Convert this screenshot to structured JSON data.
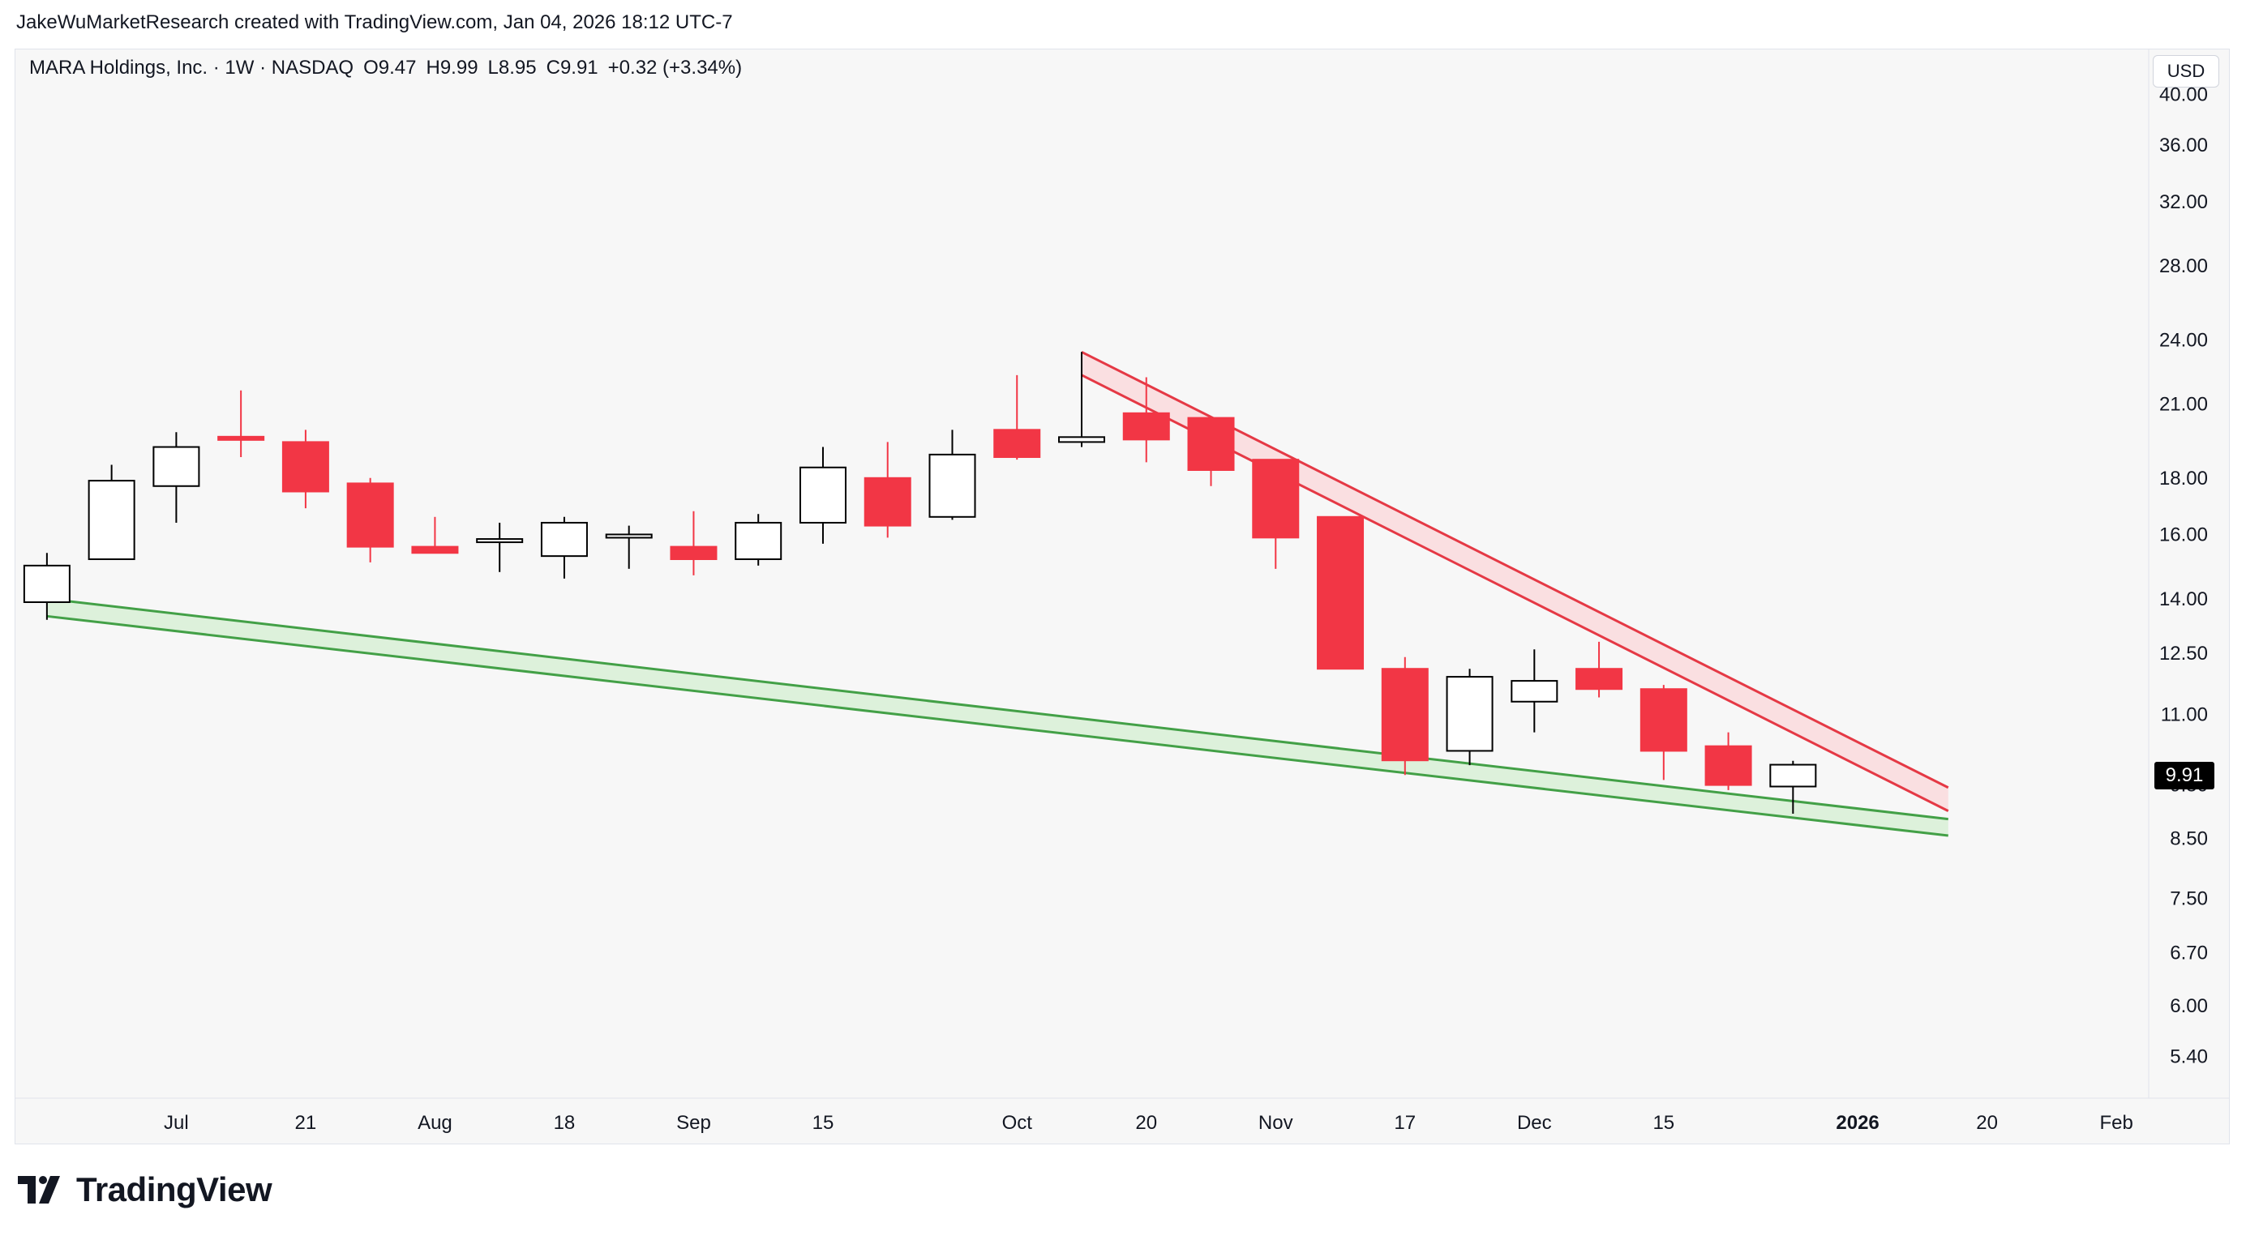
{
  "header": {
    "caption": "JakeWuMarketResearch created with TradingView.com, Jan 04, 2026 18:12 UTC-7"
  },
  "legend": {
    "symbol": "MARA Holdings, Inc. · 1W · NASDAQ",
    "open": "O9.47",
    "high": "H9.99",
    "low": "L8.95",
    "close": "C9.91",
    "change": "+0.32 (+3.34%)"
  },
  "currency": "USD",
  "last_price_label": "9.91",
  "brand": {
    "name": "TradingView"
  },
  "colors": {
    "up_body": "#ffffff",
    "up_border": "#000000",
    "down": "#f23645",
    "support": "#43a047",
    "support_fill": "#d8f0d6",
    "resistance": "#e53945",
    "resistance_fill": "#fadadd",
    "background": "#f7f7f7"
  },
  "chart_data": {
    "type": "candlestick",
    "title": "MARA Holdings, Inc. · 1W · NASDAQ",
    "y_scale": "log",
    "ylim": [
      4.95,
      44.0
    ],
    "y_ticks": [
      40.0,
      36.0,
      32.0,
      28.0,
      24.0,
      21.0,
      18.0,
      16.0,
      14.0,
      12.5,
      11.0,
      9.5,
      8.5,
      7.5,
      6.7,
      6.0,
      5.4
    ],
    "y_tick_labels": [
      "40.00",
      "36.00",
      "32.00",
      "28.00",
      "24.00",
      "21.00",
      "18.00",
      "16.00",
      "14.00",
      "12.50",
      "11.00",
      "9.50",
      "8.50",
      "7.50",
      "6.70",
      "6.00",
      "5.40"
    ],
    "x_index_range": [
      -0.5,
      32.5
    ],
    "x_ticks": [
      {
        "i": 2,
        "label": "Jul",
        "bold": false
      },
      {
        "i": 4,
        "label": "21",
        "bold": false
      },
      {
        "i": 6,
        "label": "Aug",
        "bold": false
      },
      {
        "i": 8,
        "label": "18",
        "bold": false
      },
      {
        "i": 10,
        "label": "Sep",
        "bold": false
      },
      {
        "i": 12,
        "label": "15",
        "bold": false
      },
      {
        "i": 15,
        "label": "Oct",
        "bold": false
      },
      {
        "i": 17,
        "label": "20",
        "bold": false
      },
      {
        "i": 19,
        "label": "Nov",
        "bold": false
      },
      {
        "i": 21,
        "label": "17",
        "bold": false
      },
      {
        "i": 23,
        "label": "Dec",
        "bold": false
      },
      {
        "i": 25,
        "label": "15",
        "bold": false
      },
      {
        "i": 28,
        "label": "2026",
        "bold": true
      },
      {
        "i": 30,
        "label": "20",
        "bold": false
      },
      {
        "i": 32,
        "label": "Feb",
        "bold": false
      }
    ],
    "candles": [
      {
        "o": 13.9,
        "h": 15.4,
        "l": 13.4,
        "c": 15.0
      },
      {
        "o": 15.2,
        "h": 18.5,
        "l": 15.2,
        "c": 17.9
      },
      {
        "o": 17.7,
        "h": 19.8,
        "l": 16.4,
        "c": 19.2
      },
      {
        "o": 19.6,
        "h": 21.6,
        "l": 18.8,
        "c": 19.5
      },
      {
        "o": 19.4,
        "h": 19.9,
        "l": 16.9,
        "c": 17.5
      },
      {
        "o": 17.8,
        "h": 18.0,
        "l": 15.1,
        "c": 15.6
      },
      {
        "o": 15.6,
        "h": 16.6,
        "l": 15.4,
        "c": 15.4
      },
      {
        "o": 15.8,
        "h": 16.4,
        "l": 14.8,
        "c": 15.8
      },
      {
        "o": 15.3,
        "h": 16.6,
        "l": 14.6,
        "c": 16.4
      },
      {
        "o": 15.9,
        "h": 16.3,
        "l": 14.9,
        "c": 16.0
      },
      {
        "o": 15.6,
        "h": 16.8,
        "l": 14.7,
        "c": 15.2
      },
      {
        "o": 15.2,
        "h": 16.7,
        "l": 15.0,
        "c": 16.4
      },
      {
        "o": 16.4,
        "h": 19.2,
        "l": 15.7,
        "c": 18.4
      },
      {
        "o": 18.0,
        "h": 19.4,
        "l": 15.9,
        "c": 16.3
      },
      {
        "o": 16.6,
        "h": 19.9,
        "l": 16.5,
        "c": 18.9
      },
      {
        "o": 19.9,
        "h": 22.3,
        "l": 18.7,
        "c": 18.8
      },
      {
        "o": 19.4,
        "h": 23.4,
        "l": 19.2,
        "c": 19.6
      },
      {
        "o": 20.6,
        "h": 22.2,
        "l": 18.6,
        "c": 19.5
      },
      {
        "o": 20.4,
        "h": 20.4,
        "l": 17.7,
        "c": 18.3
      },
      {
        "o": 18.7,
        "h": 18.7,
        "l": 14.9,
        "c": 15.9
      },
      {
        "o": 16.6,
        "h": 16.6,
        "l": 12.1,
        "c": 12.1
      },
      {
        "o": 12.1,
        "h": 12.4,
        "l": 9.7,
        "c": 10.0
      },
      {
        "o": 10.2,
        "h": 12.1,
        "l": 9.9,
        "c": 11.9
      },
      {
        "o": 11.3,
        "h": 12.6,
        "l": 10.6,
        "c": 11.8
      },
      {
        "o": 12.1,
        "h": 12.8,
        "l": 11.4,
        "c": 11.6
      },
      {
        "o": 11.6,
        "h": 11.7,
        "l": 9.6,
        "c": 10.2
      },
      {
        "o": 10.3,
        "h": 10.6,
        "l": 9.4,
        "c": 9.5
      },
      {
        "o": 9.47,
        "h": 9.99,
        "l": 8.95,
        "c": 9.91
      }
    ],
    "trendlines": [
      {
        "name": "resistance-channel",
        "upper": [
          [
            16,
            23.4
          ],
          [
            29.4,
            9.45
          ]
        ],
        "lower": [
          [
            16,
            22.3
          ],
          [
            29.4,
            9.0
          ]
        ]
      },
      {
        "name": "support-channel",
        "upper": [
          [
            0,
            14.0
          ],
          [
            29.4,
            8.85
          ]
        ],
        "lower": [
          [
            0,
            13.5
          ],
          [
            29.4,
            8.55
          ]
        ]
      }
    ]
  }
}
